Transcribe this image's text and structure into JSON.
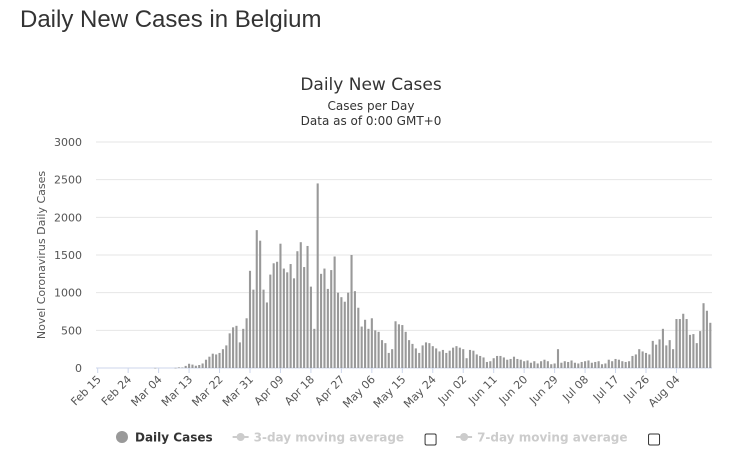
{
  "page": {
    "heading": "Daily New Cases in Belgium"
  },
  "legend": {
    "items": [
      {
        "label": "Daily Cases",
        "color": "#999999",
        "text_color": "#333333",
        "active": true,
        "has_checkbox": false
      },
      {
        "label": "3-day moving average",
        "color": "#cccccc",
        "text_color": "#cccccc",
        "active": false,
        "has_checkbox": true
      },
      {
        "label": "7-day moving average",
        "color": "#cccccc",
        "text_color": "#cccccc",
        "active": false,
        "has_checkbox": true
      }
    ]
  },
  "chart_data": {
    "type": "bar",
    "title": "Daily New Cases",
    "subtitle": "Cases per Day",
    "subtitle2": "Data as of 0:00 GMT+0",
    "xlabel": "",
    "ylabel": "Novel Coronavirus Daily Cases",
    "ylim": [
      0,
      3000
    ],
    "yticks": [
      0,
      500,
      1000,
      1500,
      2000,
      2500,
      3000
    ],
    "grid": true,
    "legend_position": "bottom",
    "bar_color": "#999999",
    "x_tick_labels": [
      "Feb 15",
      "Feb 24",
      "Mar 04",
      "Mar 13",
      "Mar 22",
      "Mar 31",
      "Apr 09",
      "Apr 18",
      "Apr 27",
      "May 06",
      "May 15",
      "May 24",
      "Jun 02",
      "Jun 11",
      "Jun 20",
      "Jun 29",
      "Jul 08",
      "Jul 17",
      "Jul 26",
      "Aug 04"
    ],
    "x_tick_interval_days": 9,
    "series": [
      {
        "name": "Daily Cases",
        "start": "Feb 15",
        "values": [
          0,
          0,
          0,
          0,
          0,
          0,
          0,
          0,
          0,
          0,
          0,
          0,
          0,
          0,
          0,
          0,
          0,
          1,
          0,
          0,
          0,
          0,
          0,
          2,
          8,
          6,
          28,
          56,
          45,
          30,
          40,
          60,
          110,
          150,
          190,
          180,
          200,
          250,
          300,
          460,
          540,
          560,
          340,
          520,
          660,
          1290,
          1040,
          1830,
          1690,
          1040,
          870,
          1240,
          1390,
          1410,
          1650,
          1320,
          1270,
          1380,
          1190,
          1550,
          1670,
          1340,
          1620,
          1080,
          520,
          2450,
          1250,
          1320,
          1050,
          1300,
          1480,
          1000,
          940,
          880,
          1000,
          1500,
          1020,
          800,
          550,
          640,
          520,
          660,
          500,
          480,
          370,
          330,
          200,
          250,
          620,
          580,
          570,
          480,
          370,
          320,
          260,
          200,
          300,
          340,
          330,
          290,
          260,
          220,
          240,
          200,
          230,
          270,
          290,
          270,
          250,
          130,
          240,
          230,
          180,
          160,
          140,
          80,
          90,
          130,
          160,
          160,
          140,
          110,
          120,
          150,
          120,
          110,
          90,
          100,
          70,
          90,
          60,
          90,
          110,
          90,
          50,
          60,
          250,
          70,
          90,
          80,
          100,
          70,
          60,
          80,
          90,
          100,
          70,
          80,
          90,
          50,
          60,
          110,
          90,
          120,
          110,
          90,
          80,
          90,
          160,
          180,
          250,
          220,
          200,
          180,
          360,
          310,
          380,
          520,
          300,
          370,
          250,
          650,
          650,
          720,
          650,
          440,
          450,
          330,
          490,
          860,
          760,
          600
        ]
      }
    ]
  }
}
